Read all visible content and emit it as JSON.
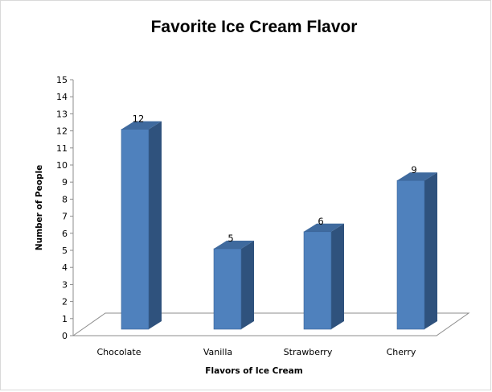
{
  "chart_data": {
    "type": "bar",
    "title": "Favorite Ice Cream Flavor",
    "xlabel": "Flavors of Ice Cream",
    "ylabel": "Number of People",
    "categories": [
      "Chocolate",
      "Vanilla",
      "Strawberry",
      "Cherry"
    ],
    "values": [
      12,
      5,
      6,
      9
    ],
    "data_labels": [
      "12",
      "5",
      "6",
      "9"
    ],
    "ylim": [
      0,
      15
    ],
    "yticks": [
      "0",
      "1",
      "2",
      "3",
      "4",
      "5",
      "6",
      "7",
      "8",
      "9",
      "10",
      "11",
      "12",
      "13",
      "14",
      "15"
    ],
    "grid": false,
    "legend": "none",
    "style": "3d-column",
    "colors": {
      "bar_front": "#4f81bd",
      "bar_side": "#2f527d",
      "bar_top": "#3f6a9e",
      "floor_stroke": "#8c8c8c"
    }
  }
}
